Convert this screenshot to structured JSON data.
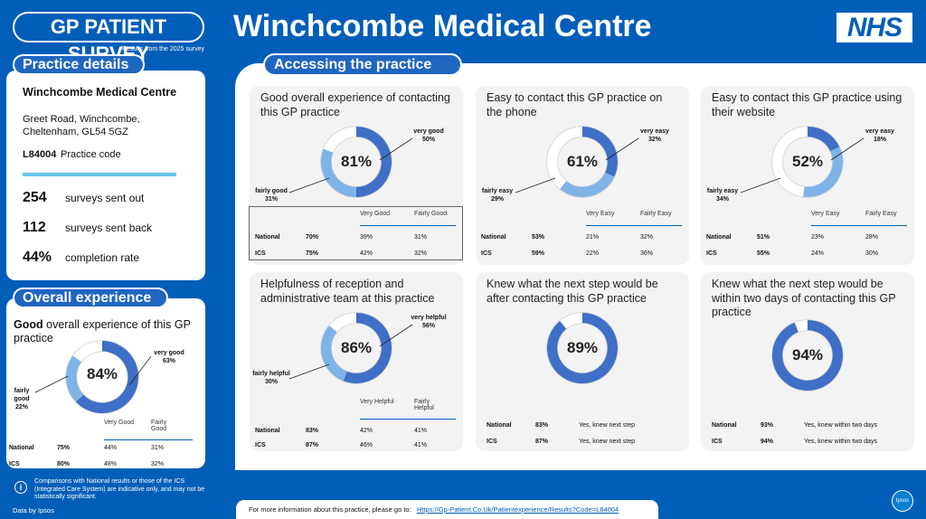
{
  "header": {
    "logo_text": "GP PATIENT SURVEY",
    "logo_sub": "Results from the 2025 survey",
    "title": "Winchcombe Medical Centre",
    "nhs_logo": "NHS"
  },
  "practice_details": {
    "pill": "Practice details",
    "name": "Winchcombe Medical Centre",
    "address_line1": "Greet Road, Winchcombe,",
    "address_line2": "Cheltenham, GL54 5GZ",
    "code": "L84004",
    "code_label": "Practice code",
    "stats": [
      {
        "value": "254",
        "label": "surveys sent out"
      },
      {
        "value": "112",
        "label": "surveys sent back"
      },
      {
        "value": "44%",
        "label": "completion rate"
      }
    ]
  },
  "overall_experience": {
    "pill": "Overall experience",
    "heading_bold": "Good",
    "heading_rest": " overall experience of this GP practice",
    "center": "84%",
    "seg1_label": "very good",
    "seg1_value": "63%",
    "seg2_label": "fairly good",
    "seg2_value": "22%",
    "very_good": 63,
    "fairly_good": 22,
    "col1": "Very Good",
    "col2": "Fairly Good",
    "rows": [
      {
        "label": "National",
        "total": "75%",
        "c1": "44%",
        "c2": "31%"
      },
      {
        "label": "ICS",
        "total": "80%",
        "c1": "48%",
        "c2": "32%"
      }
    ]
  },
  "footnote": "Comparisons with National results or those of the ICS (Integrated Care System) are indicative only, and may not be statistically significant.",
  "data_by": "Data by Ipsos",
  "main": {
    "pill": "Accessing the practice",
    "cards": [
      {
        "title": "Good overall experience of contacting this GP practice",
        "center": "81%",
        "seg1_label": "very good",
        "seg1_value": "50%",
        "seg1": 50,
        "seg2_label": "fairly good",
        "seg2_value": "31%",
        "seg2": 31,
        "col1": "Very Good",
        "col2": "Fairly Good",
        "rows": [
          {
            "label": "National",
            "total": "70%",
            "c1": "39%",
            "c2": "31%"
          },
          {
            "label": "ICS",
            "total": "75%",
            "c1": "42%",
            "c2": "32%"
          }
        ]
      },
      {
        "title": "Easy to contact this GP practice on the phone",
        "center": "61%",
        "seg1_label": "very easy",
        "seg1_value": "32%",
        "seg1": 32,
        "seg2_label": "fairly easy",
        "seg2_value": "29%",
        "seg2": 29,
        "col1": "Very Easy",
        "col2": "Fairly Easy",
        "rows": [
          {
            "label": "National",
            "total": "53%",
            "c1": "21%",
            "c2": "32%"
          },
          {
            "label": "ICS",
            "total": "59%",
            "c1": "22%",
            "c2": "36%"
          }
        ]
      },
      {
        "title": "Easy to contact this GP practice using their website",
        "center": "52%",
        "seg1_label": "very easy",
        "seg1_value": "18%",
        "seg1": 18,
        "seg2_label": "fairly easy",
        "seg2_value": "34%",
        "seg2": 34,
        "col1": "Very Easy",
        "col2": "Fairly Easy",
        "rows": [
          {
            "label": "National",
            "total": "51%",
            "c1": "23%",
            "c2": "28%"
          },
          {
            "label": "ICS",
            "total": "55%",
            "c1": "24%",
            "c2": "30%"
          }
        ]
      },
      {
        "title": "Helpfulness of reception and administrative team at this practice",
        "center": "86%",
        "seg1_label": "very helpful",
        "seg1_value": "56%",
        "seg1": 56,
        "seg2_label": "fairly helpful",
        "seg2_value": "30%",
        "seg2": 30,
        "col1": "Very Helpful",
        "col2": "Fairly Helpful",
        "rows": [
          {
            "label": "National",
            "total": "83%",
            "c1": "42%",
            "c2": "41%"
          },
          {
            "label": "ICS",
            "total": "87%",
            "c1": "46%",
            "c2": "41%"
          }
        ]
      },
      {
        "title": "Knew what the next step would be after contacting this GP practice",
        "center": "89%",
        "seg1": 89,
        "rows": [
          {
            "label": "National",
            "total": "83%",
            "text": "Yes, knew next step"
          },
          {
            "label": "ICS",
            "total": "87%",
            "text": "Yes, knew next step"
          }
        ]
      },
      {
        "title": "Knew what the next step would be within two days of contacting this GP practice",
        "center": "94%",
        "seg1": 94,
        "rows": [
          {
            "label": "National",
            "total": "93%",
            "text": "Yes, knew within two days"
          },
          {
            "label": "ICS",
            "total": "94%",
            "text": "Yes, knew within two days"
          }
        ]
      }
    ]
  },
  "footer": {
    "text": "For more information about this practice, please go to:",
    "link": "Https://Gp-Patient.Co.Uk/Patientexperience/Results?Code=L84004",
    "ipsos": "Ipsos"
  },
  "colors": {
    "nhs_blue": "#005EB8",
    "dark_seg": "#3F6FC6",
    "light_seg": "#7FB3E8",
    "rest_seg": "#FFFFFF"
  }
}
